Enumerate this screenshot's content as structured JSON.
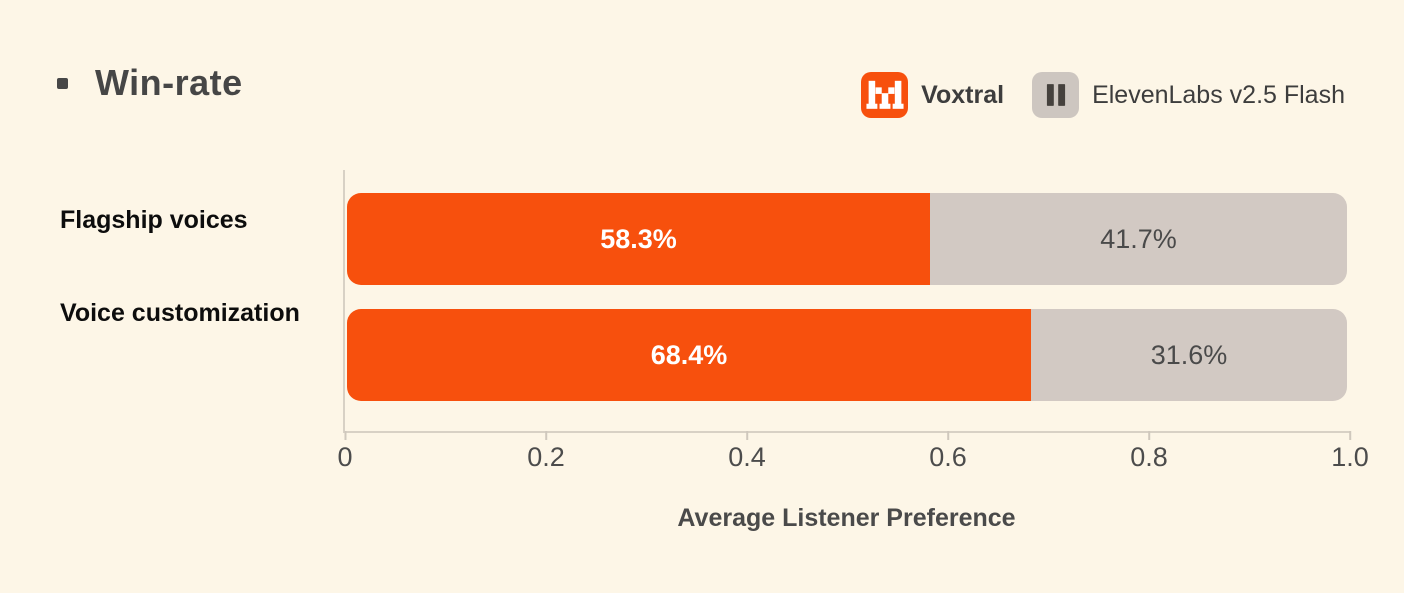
{
  "header": {
    "title": "Win-rate"
  },
  "legend": {
    "items": [
      {
        "name": "Voxtral",
        "icon": "mistral-logo",
        "chip_color": "#F7500D"
      },
      {
        "name": "ElevenLabs v2.5 Flash",
        "icon": "elevenlabs-logo",
        "chip_color": "#CDC6C0"
      }
    ]
  },
  "chart_data": {
    "type": "bar",
    "orientation": "horizontal",
    "stacked": true,
    "title": "Win-rate",
    "xlabel": "Average Listener Preference",
    "xlim": [
      0,
      1
    ],
    "xticks": [
      0,
      0.2,
      0.4,
      0.6,
      0.8,
      1.0
    ],
    "xtick_labels": [
      "0",
      "0.2",
      "0.4",
      "0.6",
      "0.8",
      "1.0"
    ],
    "categories": [
      "Flagship voices",
      "Voice customization"
    ],
    "series": [
      {
        "name": "Voxtral",
        "color": "#F7500D",
        "values": [
          0.583,
          0.684
        ],
        "data_labels": [
          "58.3%",
          "68.4%"
        ]
      },
      {
        "name": "ElevenLabs v2.5 Flash",
        "color": "#D2C9C3",
        "values": [
          0.417,
          0.316
        ],
        "data_labels": [
          "41.7%",
          "31.6%"
        ]
      }
    ],
    "legend_position": "top-right",
    "grid": false
  },
  "colors": {
    "background": "#FDF6E7",
    "voxtral_orange": "#F7500D",
    "elevenlabs_bar_gray": "#D2C9C3",
    "legend_chip_gray": "#CDC6C0",
    "axis_line": "#D8D1C5",
    "text_dark": "#3D3D3D"
  }
}
